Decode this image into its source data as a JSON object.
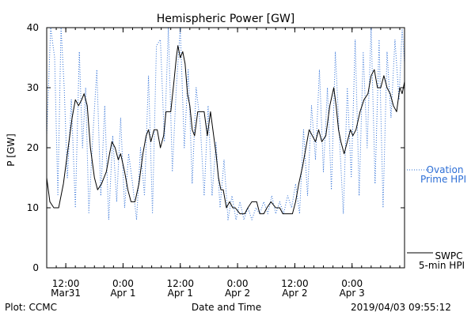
{
  "chart_data": {
    "type": "line",
    "title": "Hemispheric Power [GW]",
    "ylabel": "P [GW]",
    "xlabel": "Date and Time",
    "ylim": [
      0,
      40
    ],
    "yticks": [
      0,
      10,
      20,
      30,
      40
    ],
    "xlim": [
      "2019-03-31T08:00",
      "2019-04-03T11:00"
    ],
    "x_ticks": [
      {
        "t": "2019-03-31T12:00",
        "line1": "12:00",
        "line2": "Mar31"
      },
      {
        "t": "2019-04-01T00:00",
        "line1": "0:00",
        "line2": "Apr 1"
      },
      {
        "t": "2019-04-01T12:00",
        "line1": "12:00",
        "line2": "Apr 1"
      },
      {
        "t": "2019-04-02T00:00",
        "line1": "0:00",
        "line2": "Apr 2"
      },
      {
        "t": "2019-04-02T12:00",
        "line1": "12:00",
        "line2": "Apr 2"
      },
      {
        "t": "2019-04-03T00:00",
        "line1": "0:00",
        "line2": "Apr 3"
      }
    ],
    "legend": [
      {
        "line1": "SWPC",
        "line2": "5-min HPI",
        "color": "#000000",
        "style": "solid"
      },
      {
        "line1": "Ovation",
        "line2": "Prime HPI",
        "color": "#2e6fd6",
        "style": "dotted"
      }
    ],
    "series": [
      {
        "name": "SWPC 5-min HPI",
        "color": "#000000",
        "points": [
          [
            "2019-03-31T08:00",
            15
          ],
          [
            "2019-03-31T08:40",
            11
          ],
          [
            "2019-03-31T09:30",
            10
          ],
          [
            "2019-03-31T10:30",
            10
          ],
          [
            "2019-03-31T11:30",
            14
          ],
          [
            "2019-03-31T12:30",
            20
          ],
          [
            "2019-03-31T13:20",
            25
          ],
          [
            "2019-03-31T14:00",
            28
          ],
          [
            "2019-03-31T14:40",
            27
          ],
          [
            "2019-03-31T15:20",
            28
          ],
          [
            "2019-03-31T15:50",
            29
          ],
          [
            "2019-03-31T16:30",
            27
          ],
          [
            "2019-03-31T17:10",
            20
          ],
          [
            "2019-03-31T18:00",
            15
          ],
          [
            "2019-03-31T18:40",
            13
          ],
          [
            "2019-03-31T19:30",
            14
          ],
          [
            "2019-03-31T20:30",
            16
          ],
          [
            "2019-03-31T21:10",
            19
          ],
          [
            "2019-03-31T21:40",
            21
          ],
          [
            "2019-03-31T22:20",
            20
          ],
          [
            "2019-03-31T23:00",
            18
          ],
          [
            "2019-03-31T23:30",
            19
          ],
          [
            "2019-04-01T00:20",
            16
          ],
          [
            "2019-04-01T01:00",
            13
          ],
          [
            "2019-04-01T01:40",
            11
          ],
          [
            "2019-04-01T02:30",
            11
          ],
          [
            "2019-04-01T03:20",
            14
          ],
          [
            "2019-04-01T04:10",
            19
          ],
          [
            "2019-04-01T04:50",
            22
          ],
          [
            "2019-04-01T05:20",
            23
          ],
          [
            "2019-04-01T05:50",
            21
          ],
          [
            "2019-04-01T06:30",
            23
          ],
          [
            "2019-04-01T07:10",
            23
          ],
          [
            "2019-04-01T07:50",
            20
          ],
          [
            "2019-04-01T08:30",
            22
          ],
          [
            "2019-04-01T09:00",
            26
          ],
          [
            "2019-04-01T10:00",
            26
          ],
          [
            "2019-04-01T10:40",
            31
          ],
          [
            "2019-04-01T11:10",
            35
          ],
          [
            "2019-04-01T11:30",
            37
          ],
          [
            "2019-04-01T12:00",
            35
          ],
          [
            "2019-04-01T12:30",
            36
          ],
          [
            "2019-04-01T13:00",
            34
          ],
          [
            "2019-04-01T13:30",
            29
          ],
          [
            "2019-04-01T14:00",
            27
          ],
          [
            "2019-04-01T14:30",
            23
          ],
          [
            "2019-04-01T15:00",
            22
          ],
          [
            "2019-04-01T15:40",
            26
          ],
          [
            "2019-04-01T16:20",
            26
          ],
          [
            "2019-04-01T17:00",
            26
          ],
          [
            "2019-04-01T17:40",
            22
          ],
          [
            "2019-04-01T18:20",
            26
          ],
          [
            "2019-04-01T19:00",
            22
          ],
          [
            "2019-04-01T19:30",
            19
          ],
          [
            "2019-04-01T20:00",
            15
          ],
          [
            "2019-04-01T20:30",
            13
          ],
          [
            "2019-04-01T21:00",
            13
          ],
          [
            "2019-04-01T21:40",
            10
          ],
          [
            "2019-04-01T22:20",
            11
          ],
          [
            "2019-04-01T23:00",
            10
          ],
          [
            "2019-04-01T23:30",
            10
          ],
          [
            "2019-04-02T00:30",
            9
          ],
          [
            "2019-04-02T01:30",
            9
          ],
          [
            "2019-04-02T02:10",
            10
          ],
          [
            "2019-04-02T03:00",
            11
          ],
          [
            "2019-04-02T04:00",
            11
          ],
          [
            "2019-04-02T04:40",
            9
          ],
          [
            "2019-04-02T05:30",
            9
          ],
          [
            "2019-04-02T06:10",
            10
          ],
          [
            "2019-04-02T07:00",
            11
          ],
          [
            "2019-04-02T08:00",
            10
          ],
          [
            "2019-04-02T08:50",
            10
          ],
          [
            "2019-04-02T09:30",
            9
          ],
          [
            "2019-04-02T10:30",
            9
          ],
          [
            "2019-04-02T11:30",
            9
          ],
          [
            "2019-04-02T12:10",
            11
          ],
          [
            "2019-04-02T12:50",
            14
          ],
          [
            "2019-04-02T13:40",
            17
          ],
          [
            "2019-04-02T14:20",
            20
          ],
          [
            "2019-04-02T15:00",
            23
          ],
          [
            "2019-04-02T15:40",
            22
          ],
          [
            "2019-04-02T16:20",
            21
          ],
          [
            "2019-04-02T17:00",
            23
          ],
          [
            "2019-04-02T17:40",
            21
          ],
          [
            "2019-04-02T18:30",
            22
          ],
          [
            "2019-04-02T19:20",
            27
          ],
          [
            "2019-04-02T20:10",
            30
          ],
          [
            "2019-04-02T20:40",
            27
          ],
          [
            "2019-04-02T21:10",
            23
          ],
          [
            "2019-04-02T21:40",
            21
          ],
          [
            "2019-04-02T22:20",
            19
          ],
          [
            "2019-04-02T23:00",
            21
          ],
          [
            "2019-04-02T23:40",
            23
          ],
          [
            "2019-04-03T00:10",
            22
          ],
          [
            "2019-04-03T00:50",
            23
          ],
          [
            "2019-04-03T01:40",
            26
          ],
          [
            "2019-04-03T02:30",
            28
          ],
          [
            "2019-04-03T03:20",
            29
          ],
          [
            "2019-04-03T04:00",
            32
          ],
          [
            "2019-04-03T04:40",
            33
          ],
          [
            "2019-04-03T05:20",
            30
          ],
          [
            "2019-04-03T06:00",
            30
          ],
          [
            "2019-04-03T06:40",
            32
          ],
          [
            "2019-04-03T07:20",
            30
          ],
          [
            "2019-04-03T08:00",
            29
          ],
          [
            "2019-04-03T08:40",
            27
          ],
          [
            "2019-04-03T09:20",
            26
          ],
          [
            "2019-04-03T10:00",
            30
          ],
          [
            "2019-04-03T10:30",
            29
          ],
          [
            "2019-04-03T11:00",
            31
          ]
        ]
      },
      {
        "name": "Ovation Prime HPI",
        "color": "#2e6fd6",
        "points": [
          [
            "2019-03-31T08:00",
            22
          ],
          [
            "2019-03-31T08:50",
            40
          ],
          [
            "2019-03-31T09:40",
            35
          ],
          [
            "2019-03-31T10:20",
            12
          ],
          [
            "2019-03-31T11:00",
            40
          ],
          [
            "2019-03-31T11:40",
            30
          ],
          [
            "2019-03-31T12:20",
            15
          ],
          [
            "2019-03-31T13:10",
            28
          ],
          [
            "2019-03-31T14:00",
            10
          ],
          [
            "2019-03-31T14:50",
            36
          ],
          [
            "2019-03-31T15:30",
            20
          ],
          [
            "2019-03-31T16:10",
            30
          ],
          [
            "2019-03-31T16:50",
            9
          ],
          [
            "2019-03-31T17:40",
            22
          ],
          [
            "2019-03-31T18:30",
            33
          ],
          [
            "2019-03-31T19:20",
            12
          ],
          [
            "2019-03-31T20:10",
            27
          ],
          [
            "2019-03-31T21:00",
            8
          ],
          [
            "2019-03-31T21:50",
            22
          ],
          [
            "2019-03-31T22:40",
            11
          ],
          [
            "2019-03-31T23:30",
            25
          ],
          [
            "2019-04-01T00:20",
            10
          ],
          [
            "2019-04-01T01:10",
            19
          ],
          [
            "2019-04-01T02:00",
            14
          ],
          [
            "2019-04-01T02:50",
            8
          ],
          [
            "2019-04-01T03:40",
            20
          ],
          [
            "2019-04-01T04:30",
            12
          ],
          [
            "2019-04-01T05:20",
            32
          ],
          [
            "2019-04-01T06:10",
            9
          ],
          [
            "2019-04-01T07:00",
            37
          ],
          [
            "2019-04-01T07:50",
            38
          ],
          [
            "2019-04-01T08:40",
            21
          ],
          [
            "2019-04-01T09:30",
            40
          ],
          [
            "2019-04-01T10:20",
            16
          ],
          [
            "2019-04-01T11:10",
            30
          ],
          [
            "2019-04-01T12:00",
            40
          ],
          [
            "2019-04-01T12:50",
            20
          ],
          [
            "2019-04-01T13:40",
            33
          ],
          [
            "2019-04-01T14:30",
            14
          ],
          [
            "2019-04-01T15:20",
            30
          ],
          [
            "2019-04-01T16:10",
            24
          ],
          [
            "2019-04-01T17:00",
            12
          ],
          [
            "2019-04-01T17:50",
            27
          ],
          [
            "2019-04-01T18:40",
            12
          ],
          [
            "2019-04-01T19:30",
            21
          ],
          [
            "2019-04-01T20:20",
            10
          ],
          [
            "2019-04-01T21:10",
            18
          ],
          [
            "2019-04-01T22:00",
            8
          ],
          [
            "2019-04-01T22:50",
            12
          ],
          [
            "2019-04-01T23:40",
            8
          ],
          [
            "2019-04-02T00:30",
            11
          ],
          [
            "2019-04-02T01:20",
            8
          ],
          [
            "2019-04-02T02:10",
            10
          ],
          [
            "2019-04-02T03:00",
            8
          ],
          [
            "2019-04-02T03:50",
            10
          ],
          [
            "2019-04-02T04:40",
            9
          ],
          [
            "2019-04-02T05:30",
            11
          ],
          [
            "2019-04-02T06:20",
            9
          ],
          [
            "2019-04-02T07:10",
            12
          ],
          [
            "2019-04-02T08:00",
            9
          ],
          [
            "2019-04-02T08:50",
            11
          ],
          [
            "2019-04-02T09:40",
            9
          ],
          [
            "2019-04-02T10:30",
            12
          ],
          [
            "2019-04-02T11:20",
            10
          ],
          [
            "2019-04-02T12:10",
            14
          ],
          [
            "2019-04-02T13:00",
            9
          ],
          [
            "2019-04-02T13:50",
            23
          ],
          [
            "2019-04-02T14:40",
            12
          ],
          [
            "2019-04-02T15:30",
            27
          ],
          [
            "2019-04-02T16:20",
            18
          ],
          [
            "2019-04-02T17:10",
            33
          ],
          [
            "2019-04-02T18:00",
            16
          ],
          [
            "2019-04-02T18:50",
            30
          ],
          [
            "2019-04-02T19:40",
            13
          ],
          [
            "2019-04-02T20:30",
            36
          ],
          [
            "2019-04-02T21:20",
            22
          ],
          [
            "2019-04-02T22:10",
            9
          ],
          [
            "2019-04-02T23:00",
            30
          ],
          [
            "2019-04-02T23:50",
            15
          ],
          [
            "2019-04-03T00:40",
            38
          ],
          [
            "2019-04-03T01:30",
            12
          ],
          [
            "2019-04-03T02:20",
            36
          ],
          [
            "2019-04-03T03:10",
            20
          ],
          [
            "2019-04-03T04:00",
            40
          ],
          [
            "2019-04-03T04:50",
            14
          ],
          [
            "2019-04-03T05:40",
            38
          ],
          [
            "2019-04-03T06:30",
            10
          ],
          [
            "2019-04-03T07:20",
            36
          ],
          [
            "2019-04-03T08:10",
            25
          ],
          [
            "2019-04-03T09:00",
            38
          ],
          [
            "2019-04-03T09:50",
            28
          ],
          [
            "2019-04-03T10:30",
            40
          ],
          [
            "2019-04-03T11:00",
            34
          ]
        ]
      }
    ]
  },
  "footer": {
    "plot_label": "Plot: CCMC",
    "timestamp": "2019/04/03 09:55:12"
  }
}
